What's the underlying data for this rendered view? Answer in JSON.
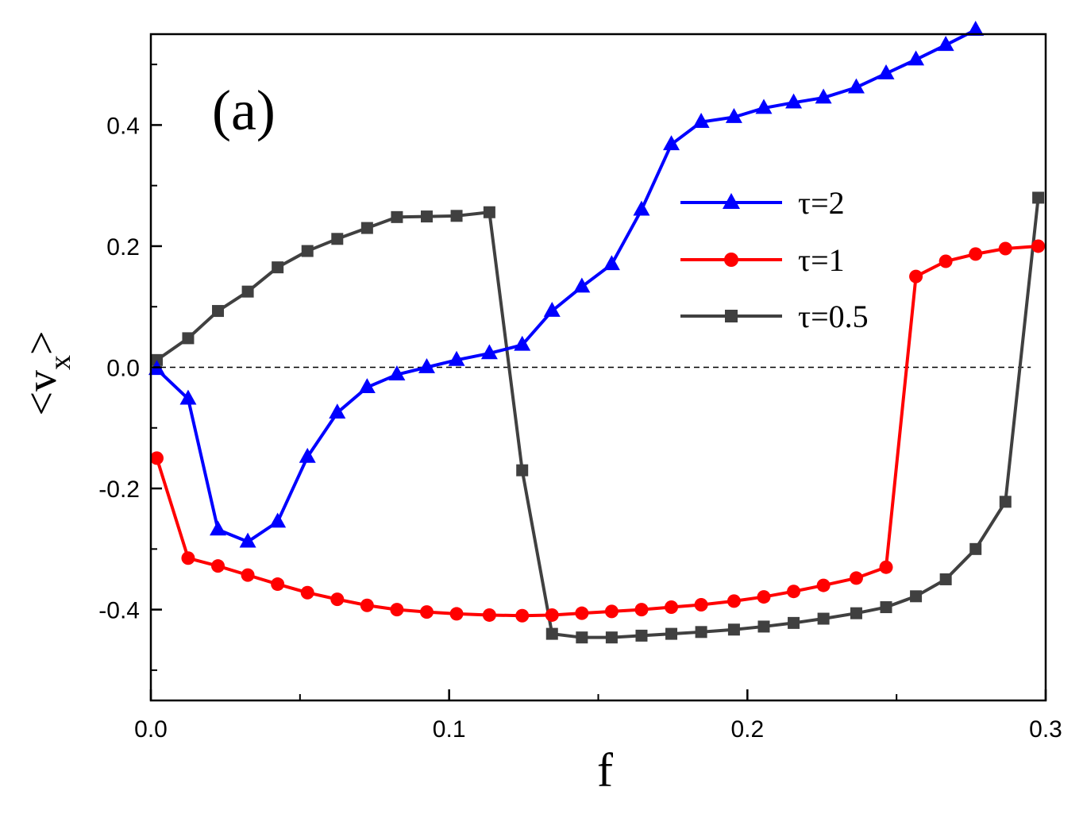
{
  "chart_data": {
    "type": "line",
    "panel_label": "(a)",
    "xlabel": "f",
    "ylabel": "<v",
    "ylabel_subscript": "x",
    "ylabel_close": ">",
    "xlim": [
      0.0,
      0.3
    ],
    "ylim": [
      -0.55,
      0.55
    ],
    "xticks": [
      0.0,
      0.1,
      0.2,
      0.3
    ],
    "xtick_labels": [
      "0.0",
      "0.1",
      "0.2",
      "0.3"
    ],
    "yticks": [
      -0.4,
      -0.2,
      0.0,
      0.2,
      0.4
    ],
    "ytick_labels": [
      "-0.4",
      "-0.2",
      "0.0",
      "0.2",
      "0.4"
    ],
    "reference_line": {
      "y": 0.0,
      "style": "dashed"
    },
    "legend_position": "center-right",
    "series": [
      {
        "name": "τ=2",
        "color": "#0000ff",
        "marker": "triangle",
        "x": [
          0.002,
          0.0125,
          0.0225,
          0.0325,
          0.0425,
          0.0525,
          0.0625,
          0.0725,
          0.0825,
          0.0925,
          0.1025,
          0.1135,
          0.1245,
          0.1345,
          0.1445,
          0.1545,
          0.1645,
          0.1745,
          0.1845,
          0.1955,
          0.2055,
          0.2155,
          0.2255,
          0.2365,
          0.2465,
          0.2565,
          0.2665,
          0.2765
        ],
        "y": [
          -0.003,
          -0.052,
          -0.268,
          -0.288,
          -0.255,
          -0.148,
          -0.075,
          -0.033,
          -0.012,
          0.0,
          0.012,
          0.023,
          0.037,
          0.093,
          0.133,
          0.17,
          0.26,
          0.368,
          0.405,
          0.413,
          0.428,
          0.437,
          0.445,
          0.462,
          0.485,
          0.508,
          0.532,
          0.557
        ]
      },
      {
        "name": "τ=1",
        "color": "#ff0000",
        "marker": "circle",
        "x": [
          0.002,
          0.0125,
          0.0225,
          0.0325,
          0.0425,
          0.0525,
          0.0625,
          0.0725,
          0.0825,
          0.0925,
          0.1025,
          0.1135,
          0.1245,
          0.1345,
          0.1445,
          0.1545,
          0.1645,
          0.1745,
          0.1845,
          0.1955,
          0.2055,
          0.2155,
          0.2255,
          0.2365,
          0.2465,
          0.2565,
          0.2665,
          0.2765,
          0.2865,
          0.2975
        ],
        "y": [
          -0.15,
          -0.315,
          -0.328,
          -0.343,
          -0.358,
          -0.372,
          -0.383,
          -0.393,
          -0.4,
          -0.404,
          -0.407,
          -0.409,
          -0.41,
          -0.409,
          -0.406,
          -0.403,
          -0.4,
          -0.396,
          -0.392,
          -0.386,
          -0.379,
          -0.37,
          -0.36,
          -0.348,
          -0.33,
          0.15,
          0.175,
          0.187,
          0.196,
          0.2
        ]
      },
      {
        "name": "τ=0.5",
        "color": "#404040",
        "marker": "square",
        "x": [
          0.002,
          0.0125,
          0.0225,
          0.0325,
          0.0425,
          0.0525,
          0.0625,
          0.0725,
          0.0825,
          0.0925,
          0.1025,
          0.1135,
          0.1245,
          0.1345,
          0.1445,
          0.1545,
          0.1645,
          0.1745,
          0.1845,
          0.1955,
          0.2055,
          0.2155,
          0.2255,
          0.2365,
          0.2465,
          0.2565,
          0.2665,
          0.2765,
          0.2865,
          0.2975
        ],
        "y": [
          0.012,
          0.048,
          0.093,
          0.125,
          0.165,
          0.192,
          0.212,
          0.23,
          0.248,
          0.249,
          0.25,
          0.256,
          -0.17,
          -0.44,
          -0.446,
          -0.446,
          -0.443,
          -0.44,
          -0.437,
          -0.433,
          -0.428,
          -0.422,
          -0.415,
          -0.406,
          -0.396,
          -0.378,
          -0.35,
          -0.3,
          -0.222,
          0.28
        ]
      }
    ]
  }
}
